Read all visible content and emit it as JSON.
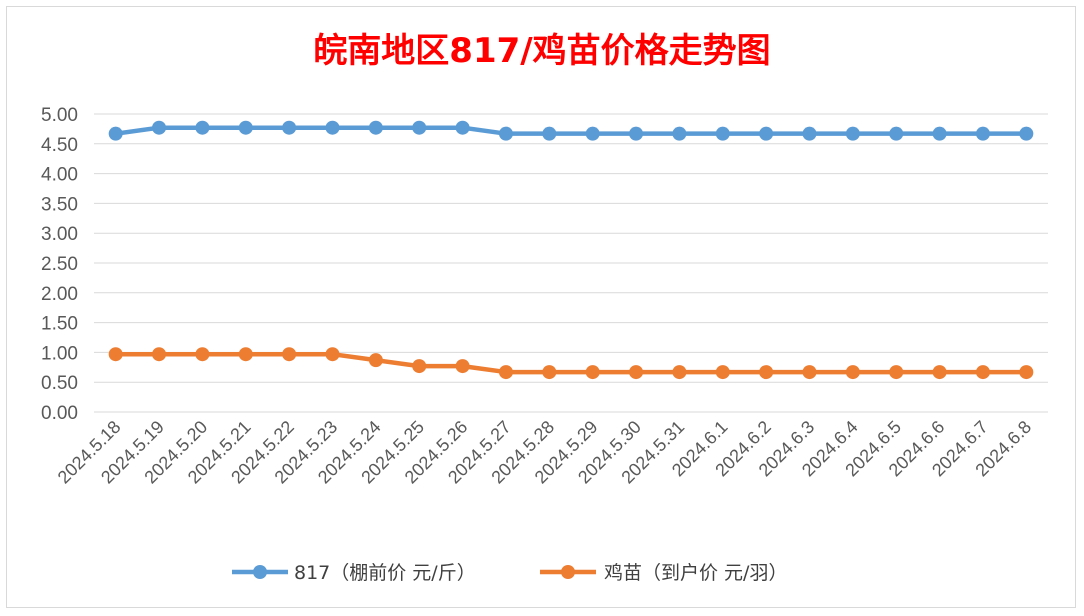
{
  "chart_data": {
    "type": "line",
    "title": "皖南地区817/鸡苗价格走势图",
    "categories": [
      "2024.5.18",
      "2024.5.19",
      "2024.5.20",
      "2024.5.21",
      "2024.5.22",
      "2024.5.23",
      "2024.5.24",
      "2024.5.25",
      "2024.5.26",
      "2024.5.27",
      "2024.5.28",
      "2024.5.29",
      "2024.5.30",
      "2024.5.31",
      "2024.6.1",
      "2024.6.2",
      "2024.6.3",
      "2024.6.4",
      "2024.6.5",
      "2024.6.6",
      "2024.6.7",
      "2024.6.8"
    ],
    "ylim": [
      0,
      5
    ],
    "yticks": [
      "0.00",
      "0.50",
      "1.00",
      "1.50",
      "2.00",
      "2.50",
      "3.00",
      "3.50",
      "4.00",
      "4.50",
      "5.00"
    ],
    "grid": true,
    "legend_position": "bottom",
    "series": [
      {
        "name": "817（棚前价 元/斤）",
        "color": "#5b9bd5",
        "values": [
          4.67,
          4.77,
          4.77,
          4.77,
          4.77,
          4.77,
          4.77,
          4.77,
          4.77,
          4.67,
          4.67,
          4.67,
          4.67,
          4.67,
          4.67,
          4.67,
          4.67,
          4.67,
          4.67,
          4.67,
          4.67,
          4.67
        ]
      },
      {
        "name": "鸡苗（到户价 元/羽）",
        "color": "#ed7d31",
        "values": [
          0.97,
          0.97,
          0.97,
          0.97,
          0.97,
          0.97,
          0.87,
          0.77,
          0.77,
          0.67,
          0.67,
          0.67,
          0.67,
          0.67,
          0.67,
          0.67,
          0.67,
          0.67,
          0.67,
          0.67,
          0.67,
          0.67
        ]
      }
    ]
  }
}
